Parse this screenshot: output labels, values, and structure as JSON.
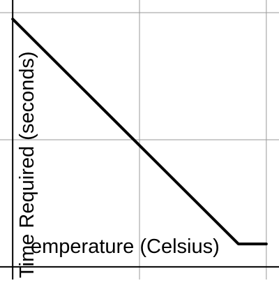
{
  "chart_data": {
    "type": "line",
    "title": "",
    "xlabel": "emperature (Celsius)",
    "ylabel": "Time Required (seconds)",
    "grid": true,
    "xlim": [
      -0.1,
      2.1
    ],
    "ylim": [
      -0.1,
      2.1
    ],
    "x": [
      0.0,
      1.78,
      2.0
    ],
    "series": [
      {
        "values": [
          1.95,
          0.18,
          0.18
        ]
      }
    ],
    "colors": {
      "line": "#000000",
      "grid": "#999999",
      "axis": "#000000"
    }
  }
}
